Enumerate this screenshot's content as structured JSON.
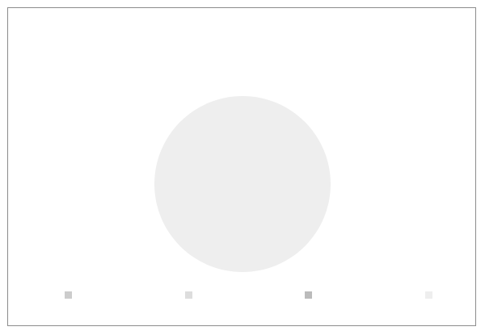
{
  "title": {
    "line1": "",
    "line2": ""
  },
  "chart_data": {
    "type": "pie",
    "categories": [
      "",
      "",
      "",
      ""
    ],
    "values": [
      0,
      0,
      0,
      0
    ],
    "labels": [
      "",
      "",
      "",
      ""
    ],
    "colors": [
      "",
      "",
      "",
      ""
    ],
    "start_angle_deg": 0,
    "direction": "clockwise",
    "legend": {
      "placement": "bottom",
      "entries": [
        "",
        "",
        "",
        ""
      ]
    }
  }
}
